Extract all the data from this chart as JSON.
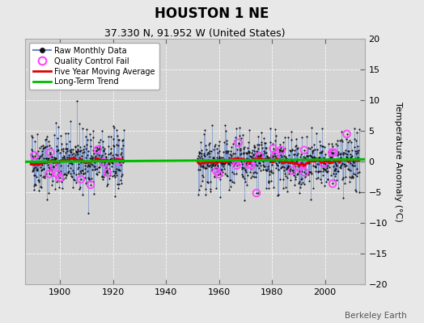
{
  "title": "HOUSTON 1 NE",
  "subtitle": "37.330 N, 91.952 W (United States)",
  "ylabel": "Temperature Anomaly (°C)",
  "watermark": "Berkeley Earth",
  "ylim": [
    -20,
    20
  ],
  "yticks": [
    -20,
    -15,
    -10,
    -5,
    0,
    5,
    10,
    15,
    20
  ],
  "xlim": [
    1887,
    2015
  ],
  "xticks": [
    1900,
    1920,
    1940,
    1960,
    1980,
    2000
  ],
  "bg_color": "#e8e8e8",
  "plot_bg_color": "#d4d4d4",
  "grid_color": "#ffffff",
  "raw_line_color": "#6688cc",
  "raw_dot_color": "#111111",
  "qc_fail_color": "#ff44ff",
  "moving_avg_color": "#dd0000",
  "trend_color": "#00bb00",
  "seed": 42,
  "period1_start": 1889.0,
  "period1_end": 1924.0,
  "period2_start": 1952.0,
  "period2_end": 2013.0,
  "noise1": 2.5,
  "noise2": 2.2,
  "n_qc1": 12,
  "n_qc2": 22,
  "trend_y0": -0.05,
  "trend_y1": 0.35
}
